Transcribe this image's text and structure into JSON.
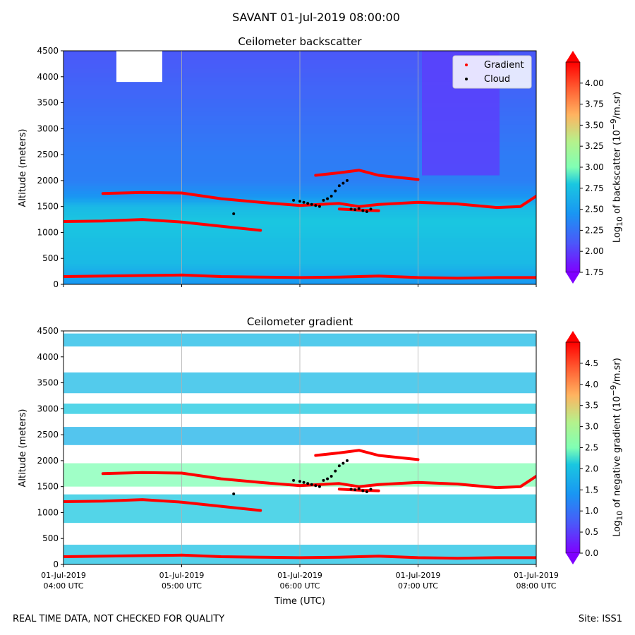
{
  "suptitle": "SAVANT 01-Jul-2019 08:00:00",
  "footer": {
    "left": "REAL TIME DATA, NOT CHECKED FOR QUALITY",
    "right": "Site: ISS1"
  },
  "chart_data": [
    {
      "type": "heatmap",
      "title": "Ceilometer backscatter",
      "ylabel": "Altitude (meters)",
      "ylim": [
        0,
        4500
      ],
      "yticks": [
        0,
        500,
        1000,
        1500,
        2000,
        2500,
        3000,
        3500,
        4000,
        4500
      ],
      "xlim": [
        "01-Jul-2019 04:00 UTC",
        "01-Jul-2019 08:00 UTC"
      ],
      "colorbar": {
        "label_html": "Log<sub>10</sub> of backscatter (10<sup>−9</sup>/m.sr)",
        "ticks": [
          "1.75",
          "2.00",
          "2.25",
          "2.50",
          "2.75",
          "3.00",
          "3.25",
          "3.50",
          "3.75",
          "4.00"
        ],
        "range": [
          1.75,
          4.25
        ],
        "colormap": "rainbow"
      },
      "legend": {
        "position": "top-right",
        "entries": [
          {
            "label": "Gradient",
            "color": "#ff0000"
          },
          {
            "label": "Cloud",
            "color": "#000000"
          }
        ]
      },
      "background_by_altitude": [
        {
          "alt": 0,
          "value": 2.45
        },
        {
          "alt": 150,
          "value": 2.55
        },
        {
          "alt": 400,
          "value": 2.7
        },
        {
          "alt": 900,
          "value": 2.75
        },
        {
          "alt": 1200,
          "value": 2.8
        },
        {
          "alt": 1500,
          "value": 2.7
        },
        {
          "alt": 1700,
          "value": 2.45
        },
        {
          "alt": 2000,
          "value": 2.32
        },
        {
          "alt": 2500,
          "value": 2.3
        },
        {
          "alt": 3000,
          "value": 2.25
        },
        {
          "alt": 3500,
          "value": 2.2
        },
        {
          "alt": 4000,
          "value": 2.15
        },
        {
          "alt": 4500,
          "value": 2.1
        }
      ],
      "gradient_layers": [
        {
          "points": [
            [
              0.5,
              1750
            ],
            [
              1,
              1770
            ],
            [
              1.5,
              1760
            ],
            [
              2,
              1650
            ],
            [
              2.5,
              1580
            ],
            [
              3,
              1520
            ],
            [
              3.5,
              1560
            ],
            [
              3.75,
              1500
            ],
            [
              4,
              1540
            ],
            [
              4.5,
              1580
            ],
            [
              5,
              1550
            ],
            [
              5.5,
              1480
            ],
            [
              5.8,
              1500
            ],
            [
              6,
              1700
            ]
          ]
        },
        {
          "points": [
            [
              0,
              1210
            ],
            [
              0.5,
              1220
            ],
            [
              1,
              1250
            ],
            [
              1.5,
              1200
            ],
            [
              2,
              1120
            ],
            [
              2.5,
              1040
            ]
          ]
        },
        {
          "points": [
            [
              0,
              150
            ],
            [
              0.5,
              160
            ],
            [
              1,
              170
            ],
            [
              1.5,
              180
            ],
            [
              2,
              150
            ],
            [
              2.5,
              140
            ],
            [
              3,
              130
            ],
            [
              3.5,
              140
            ],
            [
              3.75,
              150
            ],
            [
              4,
              160
            ],
            [
              4.5,
              130
            ],
            [
              5,
              120
            ],
            [
              5.5,
              130
            ],
            [
              6,
              130
            ]
          ]
        },
        {
          "points": [
            [
              3.2,
              2100
            ],
            [
              3.5,
              2150
            ],
            [
              3.75,
              2200
            ],
            [
              4,
              2100
            ],
            [
              4.5,
              2020
            ]
          ]
        },
        {
          "points": [
            [
              3.5,
              1450
            ],
            [
              3.75,
              1430
            ],
            [
              4,
              1420
            ]
          ]
        }
      ],
      "cloud_points": [
        [
          2.16,
          1360
        ],
        [
          2.92,
          1620
        ],
        [
          3.0,
          1600
        ],
        [
          3.05,
          1580
        ],
        [
          3.1,
          1560
        ],
        [
          3.15,
          1540
        ],
        [
          3.2,
          1520
        ],
        [
          3.25,
          1500
        ],
        [
          3.3,
          1620
        ],
        [
          3.35,
          1650
        ],
        [
          3.4,
          1700
        ],
        [
          3.45,
          1800
        ],
        [
          3.5,
          1900
        ],
        [
          3.55,
          1950
        ],
        [
          3.6,
          2000
        ],
        [
          3.65,
          1450
        ],
        [
          3.7,
          1440
        ],
        [
          3.75,
          1460
        ],
        [
          3.8,
          1420
        ],
        [
          3.85,
          1400
        ],
        [
          3.9,
          1450
        ]
      ]
    },
    {
      "type": "heatmap",
      "title": "Ceilometer gradient",
      "xlabel": "Time (UTC)",
      "ylabel": "Altitude (meters)",
      "ylim": [
        0,
        4500
      ],
      "yticks": [
        0,
        500,
        1000,
        1500,
        2000,
        2500,
        3000,
        3500,
        4000,
        4500
      ],
      "xticks": [
        {
          "line1": "01-Jul-2019",
          "line2": "04:00 UTC"
        },
        {
          "line1": "01-Jul-2019",
          "line2": "05:00 UTC"
        },
        {
          "line1": "01-Jul-2019",
          "line2": "06:00 UTC"
        },
        {
          "line1": "01-Jul-2019",
          "line2": "07:00 UTC"
        },
        {
          "line1": "01-Jul-2019",
          "line2": "08:00 UTC"
        }
      ],
      "colorbar": {
        "label_html": "Log<sub>10</sub> of negative gradient (10<sup>−9</sup>/m.sr)",
        "ticks": [
          "0.0",
          "0.5",
          "1.0",
          "1.5",
          "2.0",
          "2.5",
          "3.0",
          "3.5",
          "4.0",
          "4.5"
        ],
        "range": [
          0,
          5.0
        ],
        "colormap": "rainbow"
      },
      "gradient_layers": [
        {
          "points": [
            [
              0.5,
              1750
            ],
            [
              1,
              1770
            ],
            [
              1.5,
              1760
            ],
            [
              2,
              1650
            ],
            [
              2.5,
              1580
            ],
            [
              3,
              1520
            ],
            [
              3.5,
              1560
            ],
            [
              3.75,
              1500
            ],
            [
              4,
              1540
            ],
            [
              4.5,
              1580
            ],
            [
              5,
              1550
            ],
            [
              5.5,
              1480
            ],
            [
              5.8,
              1500
            ],
            [
              6,
              1700
            ]
          ]
        },
        {
          "points": [
            [
              0,
              1210
            ],
            [
              0.5,
              1220
            ],
            [
              1,
              1250
            ],
            [
              1.5,
              1200
            ],
            [
              2,
              1120
            ],
            [
              2.5,
              1040
            ]
          ]
        },
        {
          "points": [
            [
              0,
              150
            ],
            [
              0.5,
              160
            ],
            [
              1,
              170
            ],
            [
              1.5,
              180
            ],
            [
              2,
              150
            ],
            [
              2.5,
              140
            ],
            [
              3,
              130
            ],
            [
              3.5,
              140
            ],
            [
              3.75,
              150
            ],
            [
              4,
              160
            ],
            [
              4.5,
              130
            ],
            [
              5,
              120
            ],
            [
              5.5,
              130
            ],
            [
              6,
              130
            ]
          ]
        },
        {
          "points": [
            [
              3.2,
              2100
            ],
            [
              3.5,
              2150
            ],
            [
              3.75,
              2200
            ],
            [
              4,
              2100
            ],
            [
              4.5,
              2020
            ]
          ]
        },
        {
          "points": [
            [
              3.5,
              1450
            ],
            [
              3.75,
              1430
            ],
            [
              4,
              1420
            ]
          ]
        }
      ],
      "cloud_points": [
        [
          2.16,
          1360
        ],
        [
          2.92,
          1620
        ],
        [
          3.0,
          1600
        ],
        [
          3.05,
          1580
        ],
        [
          3.1,
          1560
        ],
        [
          3.15,
          1540
        ],
        [
          3.2,
          1520
        ],
        [
          3.25,
          1500
        ],
        [
          3.3,
          1620
        ],
        [
          3.35,
          1650
        ],
        [
          3.4,
          1700
        ],
        [
          3.45,
          1800
        ],
        [
          3.5,
          1900
        ],
        [
          3.55,
          1950
        ],
        [
          3.6,
          2000
        ],
        [
          3.65,
          1450
        ],
        [
          3.7,
          1440
        ],
        [
          3.75,
          1460
        ],
        [
          3.8,
          1420
        ],
        [
          3.85,
          1400
        ],
        [
          3.9,
          1450
        ]
      ]
    }
  ]
}
